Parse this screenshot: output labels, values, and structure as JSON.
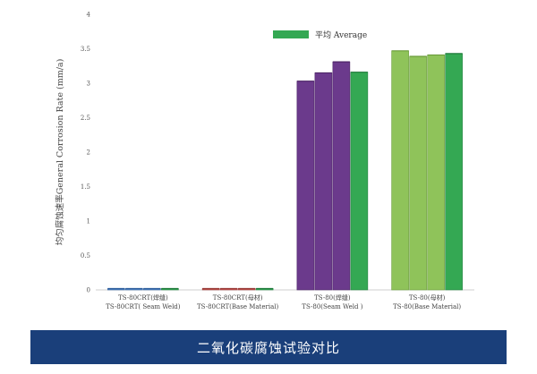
{
  "chart_data": {
    "type": "bar",
    "ylabel": "均匀腐蚀速率General Corrosion Rate (mm/a)",
    "ylim": [
      0,
      4
    ],
    "yticks": [
      "0",
      "0.5",
      "1",
      "1.5",
      "2",
      "2.5",
      "3",
      "3.5",
      "4"
    ],
    "grid": false,
    "legend_position": "top-right",
    "legend": [
      {
        "label": "平均 Average",
        "color": "#34a853"
      }
    ],
    "groups": [
      {
        "label_line1": "TS-80CRT(焊缝)",
        "label_line2": "TS-80CRT( Seam Weld)",
        "values": [
          0.015,
          0.02,
          0.01
        ],
        "average": 0.015,
        "color": "#4a7fc1",
        "edge": "#2f5f9e"
      },
      {
        "label_line1": "TS-80CRT(母材)",
        "label_line2": "TS-80CRT(Base Material)",
        "values": [
          0.01,
          0.02,
          0.015
        ],
        "average": 0.015,
        "color": "#c0504d",
        "edge": "#9a3a37"
      },
      {
        "label_line1": "TS-80(焊缝)",
        "label_line2": "TS-80(Seam Weld )",
        "values": [
          3.03,
          3.15,
          3.31
        ],
        "average": 3.16,
        "color": "#6b3a8c",
        "edge": "#4e2668"
      },
      {
        "label_line1": "TS-80(母材)",
        "label_line2": "TS-80(Base Material)",
        "values": [
          3.47,
          3.39,
          3.41
        ],
        "average": 3.43,
        "color": "#8fc35a",
        "edge": "#6a9c3a"
      }
    ]
  },
  "caption": "二氧化碳腐蚀试验对比"
}
